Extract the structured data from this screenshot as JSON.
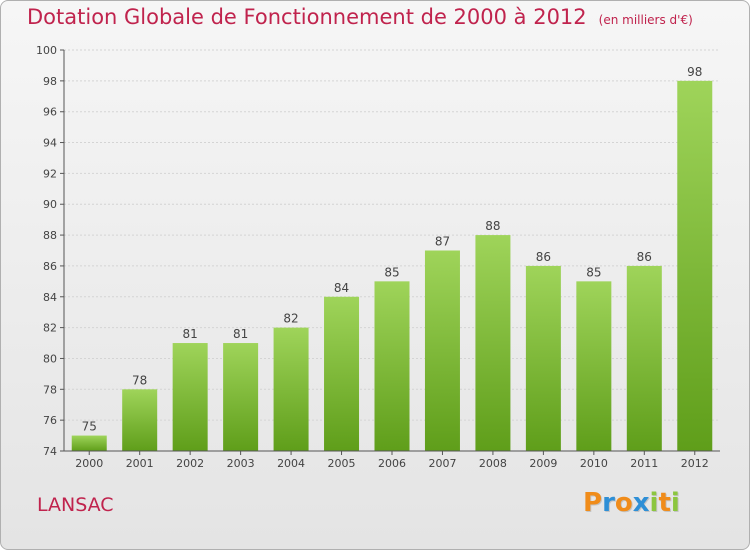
{
  "header": {
    "title": "Dotation Globale de Fonctionnement de 2000 à 2012",
    "subtitle": "(en milliers d'€)"
  },
  "footer": {
    "commune": "LANSAC",
    "logo_text": "Proxiti",
    "logo_letters": [
      {
        "ch": "P",
        "color": "#f08c1a"
      },
      {
        "ch": "r",
        "color": "#2e8fd6"
      },
      {
        "ch": "o",
        "color": "#f08c1a"
      },
      {
        "ch": "x",
        "color": "#2e8fd6"
      },
      {
        "ch": "i",
        "color": "#8cc63f"
      },
      {
        "ch": "t",
        "color": "#f08c1a"
      },
      {
        "ch": "i",
        "color": "#8cc63f"
      }
    ]
  },
  "colors": {
    "title": "#c0234d",
    "bar_light": "#9fd45a",
    "bar_dark": "#5f9e1a",
    "axis": "#555555",
    "grid": "#d4d4d4"
  },
  "chart_data": {
    "type": "bar",
    "title": "Dotation Globale de Fonctionnement de 2000 à 2012",
    "subtitle": "(en milliers d'€)",
    "categories": [
      "2000",
      "2001",
      "2002",
      "2003",
      "2004",
      "2005",
      "2006",
      "2007",
      "2008",
      "2009",
      "2010",
      "2011",
      "2012"
    ],
    "values": [
      75,
      78,
      81,
      81,
      82,
      84,
      85,
      87,
      88,
      86,
      85,
      86,
      98
    ],
    "ylim": [
      74,
      100
    ],
    "yticks": [
      74,
      76,
      78,
      80,
      82,
      84,
      86,
      88,
      90,
      92,
      94,
      96,
      98,
      100
    ],
    "grid": true,
    "legend": "none"
  }
}
